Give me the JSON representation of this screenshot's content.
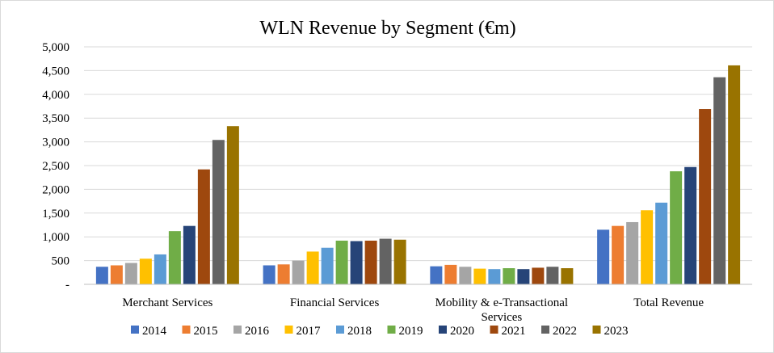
{
  "chart_data": {
    "type": "bar",
    "title": "WLN Revenue by Segment (€m)",
    "xlabel": "",
    "ylabel": "",
    "ylim": [
      0,
      5000
    ],
    "y_ticks": [
      0,
      500,
      1000,
      1500,
      2000,
      2500,
      3000,
      3500,
      4000,
      4500,
      5000
    ],
    "y_tick_labels": [
      "-",
      "500",
      "1,000",
      "1,500",
      "2,000",
      "2,500",
      "3,000",
      "3,500",
      "4,000",
      "4,500",
      "5,000"
    ],
    "grid": true,
    "legend_position": "bottom",
    "categories": [
      [
        "Merchant Services"
      ],
      [
        "Financial Services"
      ],
      [
        "Mobility & e-Transactional",
        "Services"
      ],
      [
        "Total Revenue"
      ]
    ],
    "series": [
      {
        "name": "2014",
        "color": "#4472C4",
        "values": [
          370,
          400,
          380,
          1150
        ]
      },
      {
        "name": "2015",
        "color": "#ED7D31",
        "values": [
          400,
          420,
          410,
          1230
        ]
      },
      {
        "name": "2016",
        "color": "#A5A5A5",
        "values": [
          450,
          500,
          370,
          1310
        ]
      },
      {
        "name": "2017",
        "color": "#FFC000",
        "values": [
          540,
          690,
          330,
          1560
        ]
      },
      {
        "name": "2018",
        "color": "#5B9BD5",
        "values": [
          630,
          770,
          320,
          1720
        ]
      },
      {
        "name": "2019",
        "color": "#70AD47",
        "values": [
          1120,
          920,
          340,
          2380
        ]
      },
      {
        "name": "2020",
        "color": "#264478",
        "values": [
          1230,
          910,
          320,
          2470
        ]
      },
      {
        "name": "2021",
        "color": "#9E480E",
        "values": [
          2420,
          920,
          350,
          3690
        ]
      },
      {
        "name": "2022",
        "color": "#636363",
        "values": [
          3040,
          960,
          370,
          4360
        ]
      },
      {
        "name": "2023",
        "color": "#997300",
        "values": [
          3330,
          940,
          340,
          4610
        ]
      }
    ]
  }
}
